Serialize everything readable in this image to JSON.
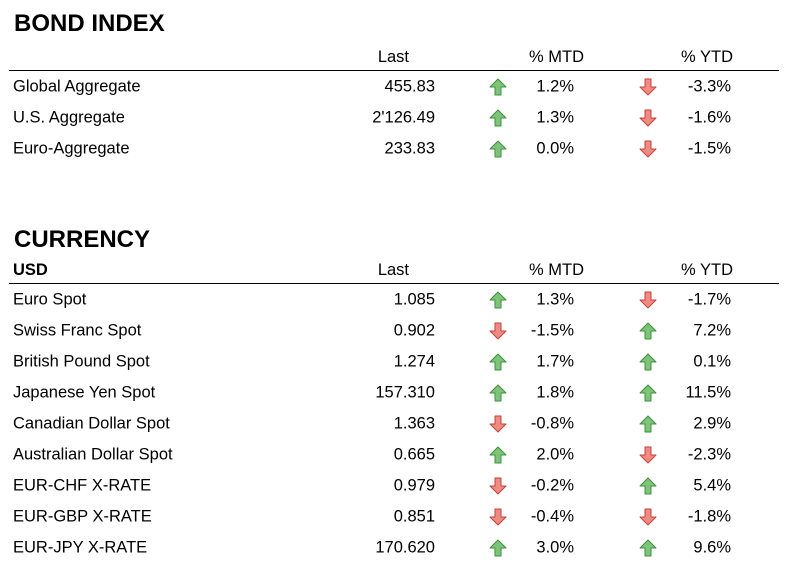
{
  "bond": {
    "title": "BOND INDEX",
    "headers": {
      "name": "",
      "last": "Last",
      "mtd": "% MTD",
      "ytd": "% YTD"
    },
    "rows": [
      {
        "name": "Global Aggregate",
        "last": "455.83",
        "mtd": "1.2%",
        "mtd_dir": "up",
        "ytd": "-3.3%",
        "ytd_dir": "down"
      },
      {
        "name": "U.S. Aggregate",
        "last": "2'126.49",
        "mtd": "1.3%",
        "mtd_dir": "up",
        "ytd": "-1.6%",
        "ytd_dir": "down"
      },
      {
        "name": "Euro-Aggregate",
        "last": "233.83",
        "mtd": "0.0%",
        "mtd_dir": "up",
        "ytd": "-1.5%",
        "ytd_dir": "down"
      }
    ]
  },
  "currency": {
    "title": "CURRENCY",
    "headers": {
      "name": "USD",
      "last": "Last",
      "mtd": "% MTD",
      "ytd": "% YTD"
    },
    "rows": [
      {
        "name": "Euro Spot",
        "last": "1.085",
        "mtd": "1.3%",
        "mtd_dir": "up",
        "ytd": "-1.7%",
        "ytd_dir": "down"
      },
      {
        "name": "Swiss Franc Spot",
        "last": "0.902",
        "mtd": "-1.5%",
        "mtd_dir": "down",
        "ytd": "7.2%",
        "ytd_dir": "up"
      },
      {
        "name": "British Pound Spot",
        "last": "1.274",
        "mtd": "1.7%",
        "mtd_dir": "up",
        "ytd": "0.1%",
        "ytd_dir": "up"
      },
      {
        "name": "Japanese Yen Spot",
        "last": "157.310",
        "mtd": "1.8%",
        "mtd_dir": "up",
        "ytd": "11.5%",
        "ytd_dir": "up"
      },
      {
        "name": "Canadian Dollar Spot",
        "last": "1.363",
        "mtd": "-0.8%",
        "mtd_dir": "down",
        "ytd": "2.9%",
        "ytd_dir": "up"
      },
      {
        "name": "Australian Dollar Spot",
        "last": "0.665",
        "mtd": "2.0%",
        "mtd_dir": "up",
        "ytd": "-2.3%",
        "ytd_dir": "down"
      },
      {
        "name": "EUR-CHF X-RATE",
        "last": "0.979",
        "mtd": "-0.2%",
        "mtd_dir": "down",
        "ytd": "5.4%",
        "ytd_dir": "up"
      },
      {
        "name": "EUR-GBP X-RATE",
        "last": "0.851",
        "mtd": "-0.4%",
        "mtd_dir": "down",
        "ytd": "-1.8%",
        "ytd_dir": "down"
      },
      {
        "name": "EUR-JPY X-RATE",
        "last": "170.620",
        "mtd": "3.0%",
        "mtd_dir": "up",
        "ytd": "9.6%",
        "ytd_dir": "up"
      }
    ]
  },
  "colors": {
    "up_fill": "#7dc37a",
    "up_stroke": "#3f8f3c",
    "down_fill": "#f08a82",
    "down_stroke": "#c0433a"
  },
  "icons": {
    "up": "arrow-up-icon",
    "down": "arrow-down-icon"
  }
}
